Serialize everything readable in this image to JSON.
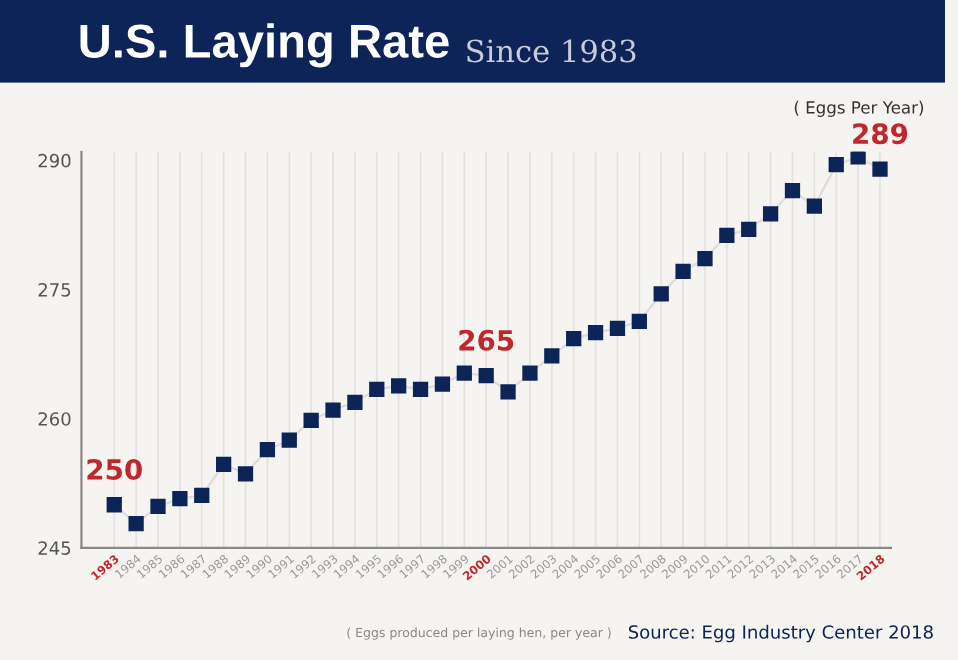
{
  "chart_data": {
    "type": "line",
    "title": "U.S. Laying Rate",
    "subtitle": "Since 1983",
    "ylabel": "( Eggs Per Year)",
    "annotations": [
      "( Eggs produced per laying hen, per year )",
      "Source: Egg Industry Center 2018"
    ],
    "categories": [
      "1983",
      "1984",
      "1985",
      "1986",
      "1987",
      "1988",
      "1989",
      "1990",
      "1991",
      "1992",
      "1993",
      "1994",
      "1995",
      "1996",
      "1997",
      "1998",
      "1999",
      "2000",
      "2001",
      "2002",
      "2003",
      "2004",
      "2005",
      "2006",
      "2007",
      "2008",
      "2009",
      "2010",
      "2011",
      "2012",
      "2013",
      "2014",
      "2015",
      "2016",
      "2017",
      "2018"
    ],
    "series": [
      {
        "color": "#0d2458",
        "values": [
          250,
          247.8,
          249.8,
          250.7,
          251.1,
          254.7,
          253.6,
          256.4,
          257.5,
          259.8,
          261.0,
          261.9,
          263.4,
          263.8,
          263.4,
          264.0,
          265.3,
          265,
          263.1,
          265.3,
          267.3,
          269.3,
          270.0,
          270.5,
          271.3,
          274.5,
          277.1,
          278.6,
          281.3,
          282.0,
          283.8,
          286.5,
          284.7,
          289.5,
          290.4,
          289
        ],
        "value_labels": [
          "250",
          null,
          null,
          null,
          null,
          null,
          null,
          null,
          null,
          null,
          null,
          null,
          null,
          null,
          null,
          null,
          null,
          "265",
          null,
          null,
          null,
          null,
          null,
          null,
          null,
          null,
          null,
          null,
          null,
          null,
          null,
          null,
          null,
          null,
          null,
          "289"
        ]
      }
    ],
    "ylim": [
      245,
      291
    ],
    "yticks": [
      245,
      260,
      275,
      290
    ],
    "grid": "x",
    "marker": "square",
    "line_style": "solid",
    "legend": false
  }
}
